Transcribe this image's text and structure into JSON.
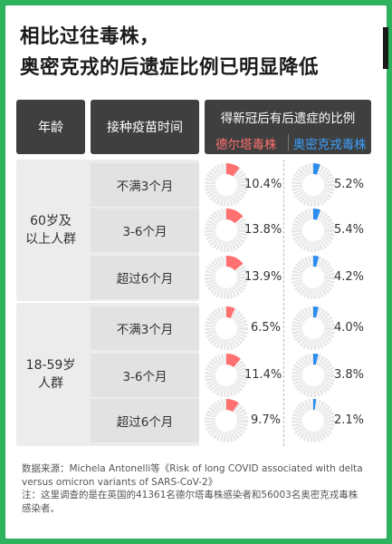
{
  "title": {
    "line1": "相比过往毒株，",
    "line2": "奥密克戎的后遗症比例已明显降低"
  },
  "colors": {
    "delta": "#ff7070",
    "omicron": "#2c8df0",
    "ring": "#e6e6e6"
  },
  "headers": {
    "age": "年龄",
    "time": "接种疫苗时间",
    "ratio": "得新冠后有后遗症的比例",
    "delta": "德尔塔毒株",
    "omicron": "奥密克戎毒株"
  },
  "groups": [
    {
      "label": "60岁及\n以上人群"
    },
    {
      "label": "18-59岁\n人群"
    }
  ],
  "chart_data": {
    "type": "table",
    "columns": [
      "年龄",
      "接种疫苗时间",
      "德尔塔毒株",
      "奥密克戎毒株"
    ],
    "rows": [
      {
        "age": "60岁及以上人群",
        "time": "不满3个月",
        "delta": 10.4,
        "omicron": 5.2,
        "delta_label": "10.4%",
        "omicron_label": "5.2%"
      },
      {
        "age": "60岁及以上人群",
        "time": "3-6个月",
        "delta": 13.8,
        "omicron": 5.4,
        "delta_label": "13.8%",
        "omicron_label": "5.4%"
      },
      {
        "age": "60岁及以上人群",
        "time": "超过6个月",
        "delta": 13.9,
        "omicron": 4.2,
        "delta_label": "13.9%",
        "omicron_label": "4.2%"
      },
      {
        "age": "18-59岁人群",
        "time": "不满3个月",
        "delta": 6.5,
        "omicron": 4.0,
        "delta_label": "6.5%",
        "omicron_label": "4.0%"
      },
      {
        "age": "18-59岁人群",
        "time": "3-6个月",
        "delta": 11.4,
        "omicron": 3.8,
        "delta_label": "11.4%",
        "omicron_label": "3.8%"
      },
      {
        "age": "18-59岁人群",
        "time": "超过6个月",
        "delta": 9.7,
        "omicron": 2.1,
        "delta_label": "9.7%",
        "omicron_label": "2.1%"
      }
    ]
  },
  "source": {
    "line1": "数据来源：Michela Antonelli等《Risk of long COVID associated with delta versus omicron variants of SARS-CoV-2》",
    "line2": "注：这里调查的是在英国的41361名德尔塔毒株感染者和56003名奥密克戎毒株感染者。"
  }
}
